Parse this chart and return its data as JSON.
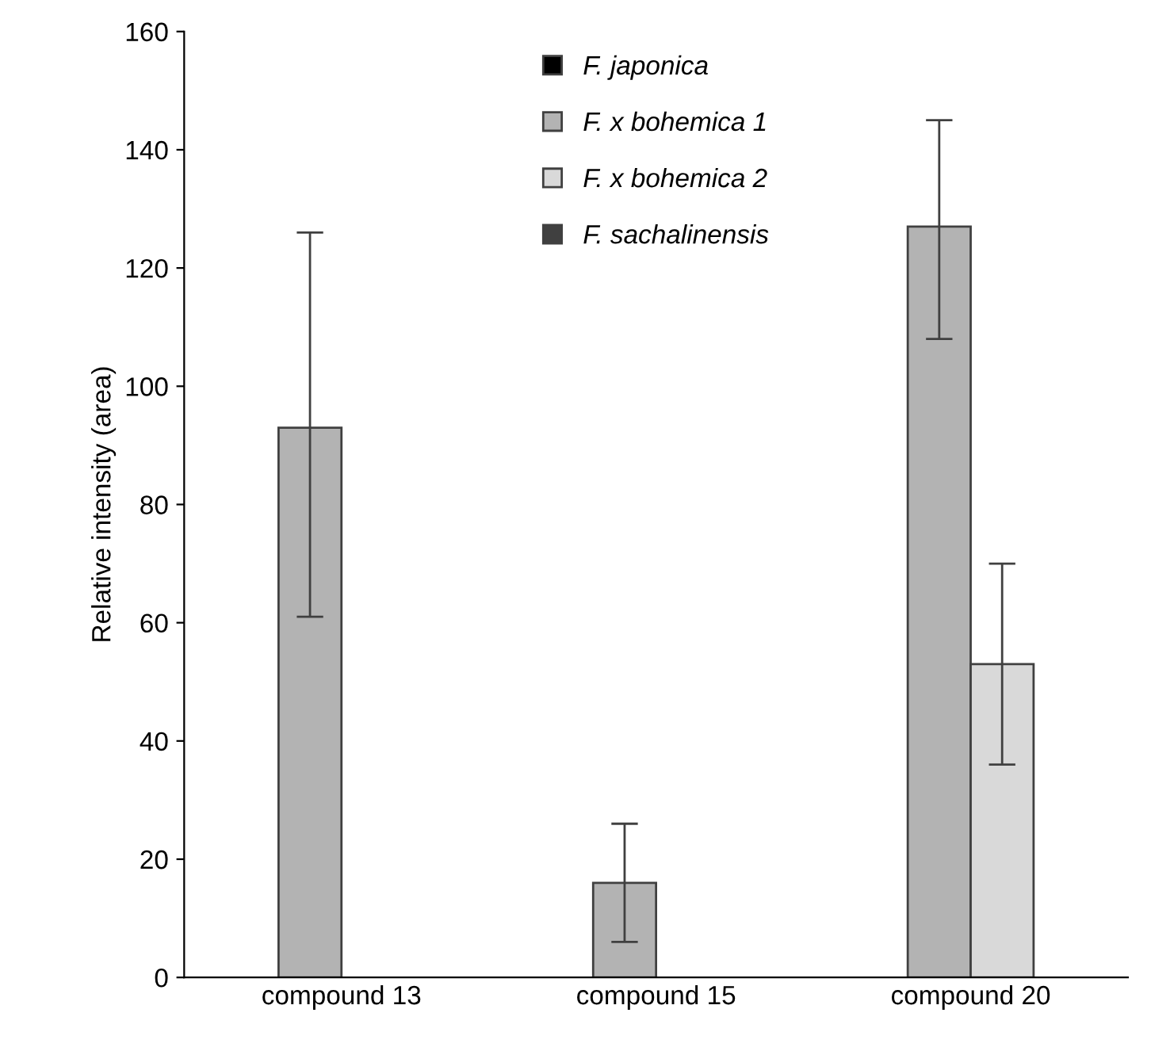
{
  "chart_data": {
    "type": "bar",
    "ylabel": "Relative intensity (area)",
    "categories": [
      "compound 13",
      "compound 15",
      "compound 20"
    ],
    "series": [
      {
        "name": "F. japonica",
        "color": "#000000",
        "values": [
          null,
          null,
          null
        ],
        "errors": [
          null,
          null,
          null
        ]
      },
      {
        "name": "F. x bohemica 1",
        "color": "#b3b3b3",
        "values": [
          93,
          16,
          127
        ],
        "errors": [
          [
            61,
            126
          ],
          [
            6,
            26
          ],
          [
            108,
            145
          ]
        ]
      },
      {
        "name": "F. x bohemica 2",
        "color": "#d9d9d9",
        "values": [
          null,
          null,
          53
        ],
        "errors": [
          null,
          null,
          [
            36,
            70
          ]
        ]
      },
      {
        "name": "F. sachalinensis",
        "color": "#404040",
        "values": [
          null,
          null,
          null
        ],
        "errors": [
          null,
          null,
          null
        ]
      }
    ],
    "ylim": [
      0,
      160
    ],
    "yticks": [
      0,
      20,
      40,
      60,
      80,
      100,
      120,
      140,
      160
    ],
    "grid": false,
    "legend": "top"
  }
}
